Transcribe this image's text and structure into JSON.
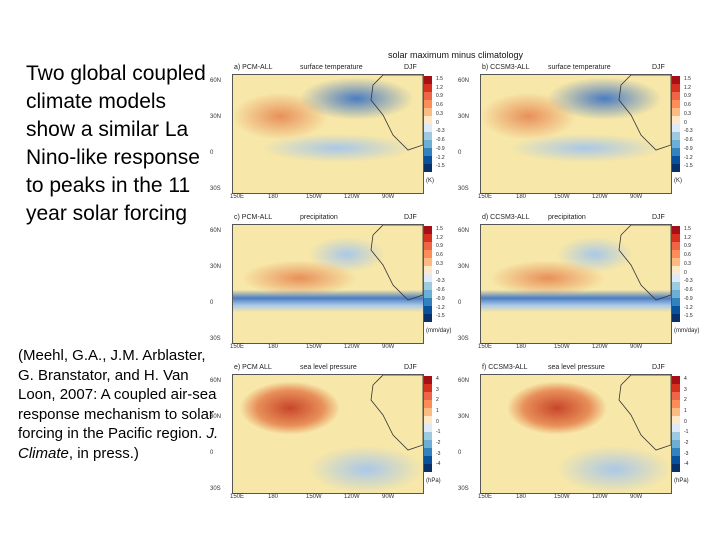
{
  "main_text": "Two global coupled climate models show a similar La Nino-like response to peaks in the 11 year solar forcing",
  "citation": {
    "authors": "(Meehl, G.A., J.M. Arblaster, G. Branstator, and H. Van Loon, 2007: A coupled air-sea response mechanism to solar forcing in the Pacific region.",
    "journal": "J. Climate",
    "rest": ", in press.)"
  },
  "figure_title": "solar maximum minus climatology",
  "panels": [
    {
      "label": "a) PCM-ALL",
      "field": "surface temperature",
      "season": "DJF",
      "unit": "(K)",
      "scale": [
        "1.5",
        "1.2",
        "0.9",
        "0.6",
        "0.3",
        "0",
        "-0.3",
        "-0.6",
        "-0.9",
        "-1.2",
        "-1.5"
      ]
    },
    {
      "label": "b) CCSM3-ALL",
      "field": "surface temperature",
      "season": "DJF",
      "unit": "(K)",
      "scale": [
        "1.5",
        "1.2",
        "0.9",
        "0.6",
        "0.3",
        "0",
        "-0.3",
        "-0.6",
        "-0.9",
        "-1.2",
        "-1.5"
      ]
    },
    {
      "label": "c) PCM-ALL",
      "field": "precipitation",
      "season": "DJF",
      "unit": "(mm/day)",
      "scale": [
        "1.5",
        "1.2",
        "0.9",
        "0.6",
        "0.3",
        "0",
        "-0.3",
        "-0.6",
        "-0.9",
        "-1.2",
        "-1.5"
      ]
    },
    {
      "label": "d) CCSM3-ALL",
      "field": "precipitation",
      "season": "DJF",
      "unit": "(mm/day)",
      "scale": [
        "1.5",
        "1.2",
        "0.9",
        "0.6",
        "0.3",
        "0",
        "-0.3",
        "-0.6",
        "-0.9",
        "-1.2",
        "-1.5"
      ]
    },
    {
      "label": "e) PCM ALL",
      "field": "sea level pressure",
      "season": "DJF",
      "unit": "(hPa)",
      "scale": [
        "4",
        "3",
        "2",
        "1",
        "0",
        "-1",
        "-2",
        "-3",
        "-4"
      ]
    },
    {
      "label": "f) CCSM3-ALL",
      "field": "sea level pressure",
      "season": "DJF",
      "unit": "(hPa)",
      "scale": [
        "4",
        "3",
        "2",
        "1",
        "0",
        "-1",
        "-2",
        "-3",
        "-4"
      ]
    }
  ],
  "lat_labels": [
    "60N",
    "30N",
    "0",
    "30S"
  ],
  "lon_labels": [
    "150E",
    "180",
    "150W",
    "120W",
    "90W"
  ],
  "colors": {
    "warm": "#e8905a",
    "hot": "#c8462a",
    "light": "#f7e7a8",
    "cool": "#a9c8e8",
    "cold": "#4a7cc2",
    "land": "#ffffff"
  }
}
